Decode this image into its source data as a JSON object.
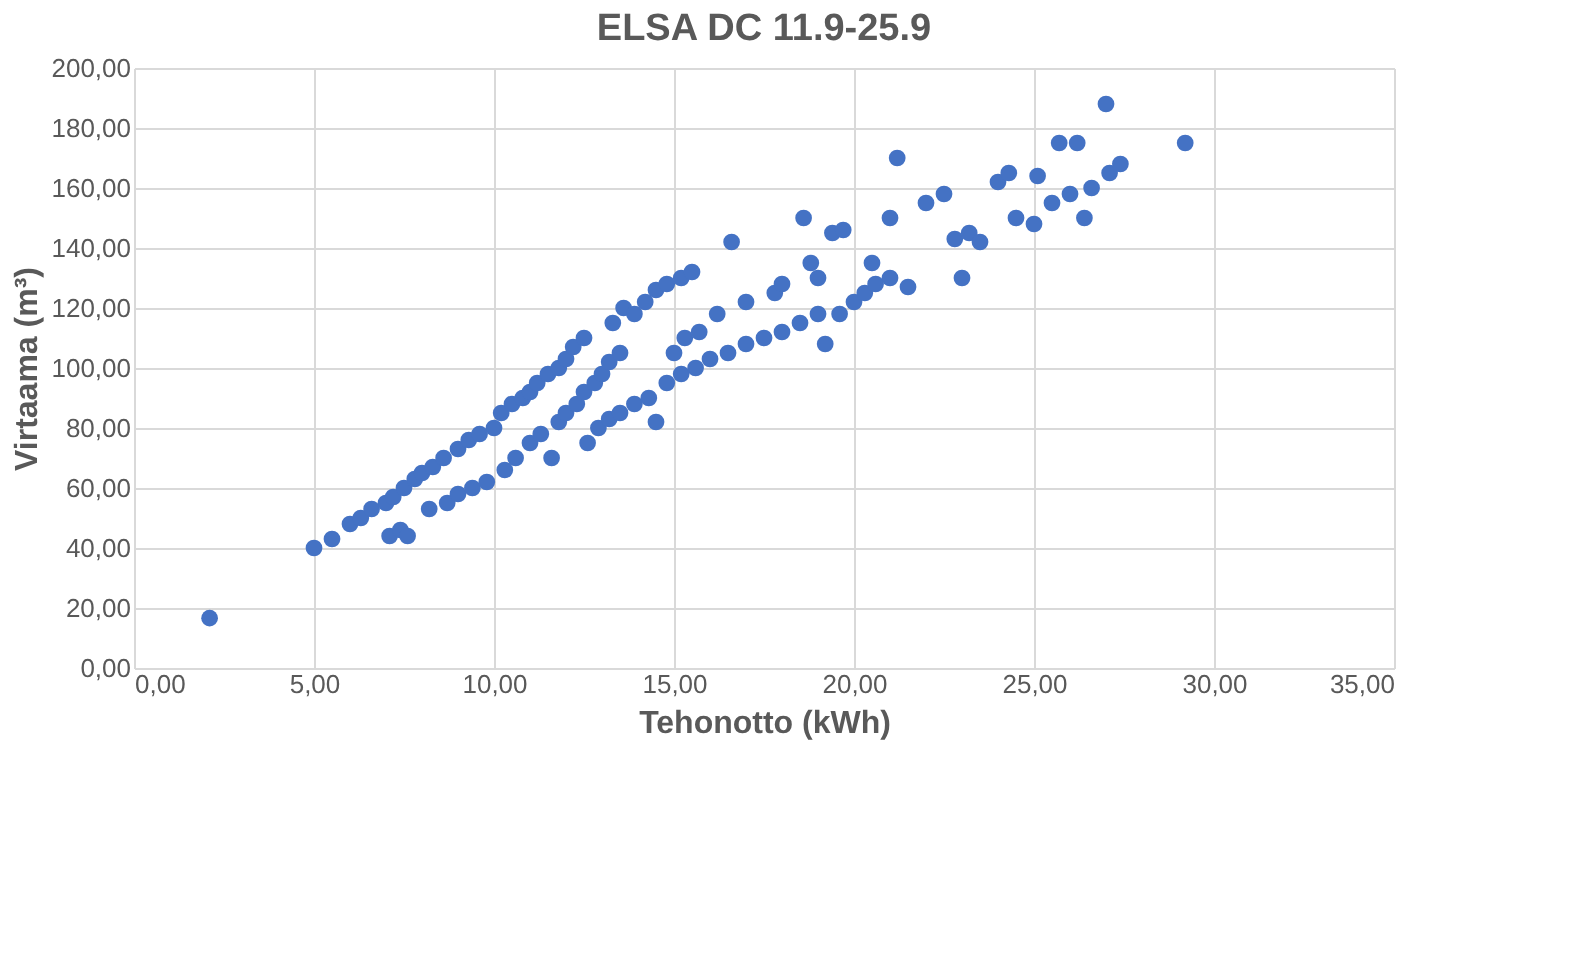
{
  "chart_data": {
    "type": "scatter",
    "title": "ELSA DC 11.9-25.9",
    "xlabel": "Tehonotto (kWh)",
    "ylabel": "Virtaama (m³)",
    "x": [
      2.1,
      5.0,
      5.5,
      6,
      6.3,
      6.6,
      7,
      7.2,
      7.5,
      7.8,
      8,
      8.3,
      8.6,
      9,
      9.3,
      9.6,
      10,
      7.1,
      7.4,
      7.6,
      8.2,
      8.7,
      9,
      9.4,
      9.8,
      10.3,
      10.6,
      10.2,
      10.5,
      10.8,
      11,
      11.2,
      11.5,
      11.8,
      12,
      12.2,
      12.5,
      11,
      11.3,
      11.6,
      11.8,
      12,
      12.3,
      12.5,
      12.8,
      13,
      13.2,
      13.5,
      13.3,
      13.6,
      13.9,
      14.2,
      14.5,
      14.8,
      15.2,
      15.5,
      12.6,
      12.9,
      13.2,
      13.5,
      13.9,
      14.3,
      14.5,
      14.8,
      15.2,
      15.6,
      16,
      16.5,
      17,
      17.5,
      18,
      18.5,
      19,
      15,
      15.3,
      15.7,
      16.2,
      16.6,
      17,
      17.8,
      18,
      18.6,
      18.8,
      19,
      19.4,
      19.7,
      19.2,
      19.6,
      20,
      20.3,
      20.6,
      21,
      21.5,
      20.5,
      21,
      21.2,
      22,
      22.5,
      22.8,
      23,
      23.2,
      23.5,
      24,
      24.3,
      24.5,
      25,
      25.5,
      25.1,
      25.7,
      26.2,
      26,
      26.6,
      26.4,
      27,
      27.1,
      27.4,
      29.2
    ],
    "series": [
      {
        "color": "#4472c4",
        "values": [
          16.6,
          40,
          43,
          48,
          50,
          53,
          55,
          57,
          60,
          63,
          65,
          67,
          70,
          73,
          76,
          78,
          80,
          44,
          46,
          44,
          53,
          55,
          58,
          60,
          62,
          66,
          70,
          85,
          88,
          90,
          92,
          95,
          98,
          100,
          103,
          107,
          110,
          75,
          78,
          70,
          82,
          85,
          88,
          92,
          95,
          98,
          102,
          105,
          115,
          120,
          118,
          122,
          126,
          128,
          130,
          132,
          75,
          80,
          83,
          85,
          88,
          90,
          82,
          95,
          98,
          100,
          103,
          105,
          108,
          110,
          112,
          115,
          118,
          105,
          110,
          112,
          118,
          142,
          122,
          125,
          128,
          150,
          135,
          130,
          145,
          146,
          108,
          118,
          122,
          125,
          128,
          130,
          127,
          135,
          150,
          170,
          155,
          158,
          143,
          130,
          145,
          142,
          162,
          165,
          150,
          148,
          155,
          164,
          175,
          175,
          158,
          160,
          150,
          188,
          165,
          168,
          175
        ]
      }
    ],
    "xlim": [
      0,
      35
    ],
    "ylim": [
      0,
      200
    ],
    "xticks": [
      {
        "value": 0,
        "label": "0,00"
      },
      {
        "value": 5,
        "label": "5,00"
      },
      {
        "value": 10,
        "label": "10,00"
      },
      {
        "value": 15,
        "label": "15,00"
      },
      {
        "value": 20,
        "label": "20,00"
      },
      {
        "value": 25,
        "label": "25,00"
      },
      {
        "value": 30,
        "label": "30,00"
      },
      {
        "value": 35,
        "label": "35,00"
      }
    ],
    "yticks": [
      {
        "value": 0,
        "label": "0,00"
      },
      {
        "value": 20,
        "label": "20,00"
      },
      {
        "value": 40,
        "label": "40,00"
      },
      {
        "value": 60,
        "label": "60,00"
      },
      {
        "value": 80,
        "label": "80,00"
      },
      {
        "value": 100,
        "label": "100,00"
      },
      {
        "value": 120,
        "label": "120,00"
      },
      {
        "value": 140,
        "label": "140,00"
      },
      {
        "value": 160,
        "label": "160,00"
      },
      {
        "value": 180,
        "label": "180,00"
      },
      {
        "value": 200,
        "label": "200,00"
      }
    ],
    "grid": true,
    "marker": "circle"
  }
}
